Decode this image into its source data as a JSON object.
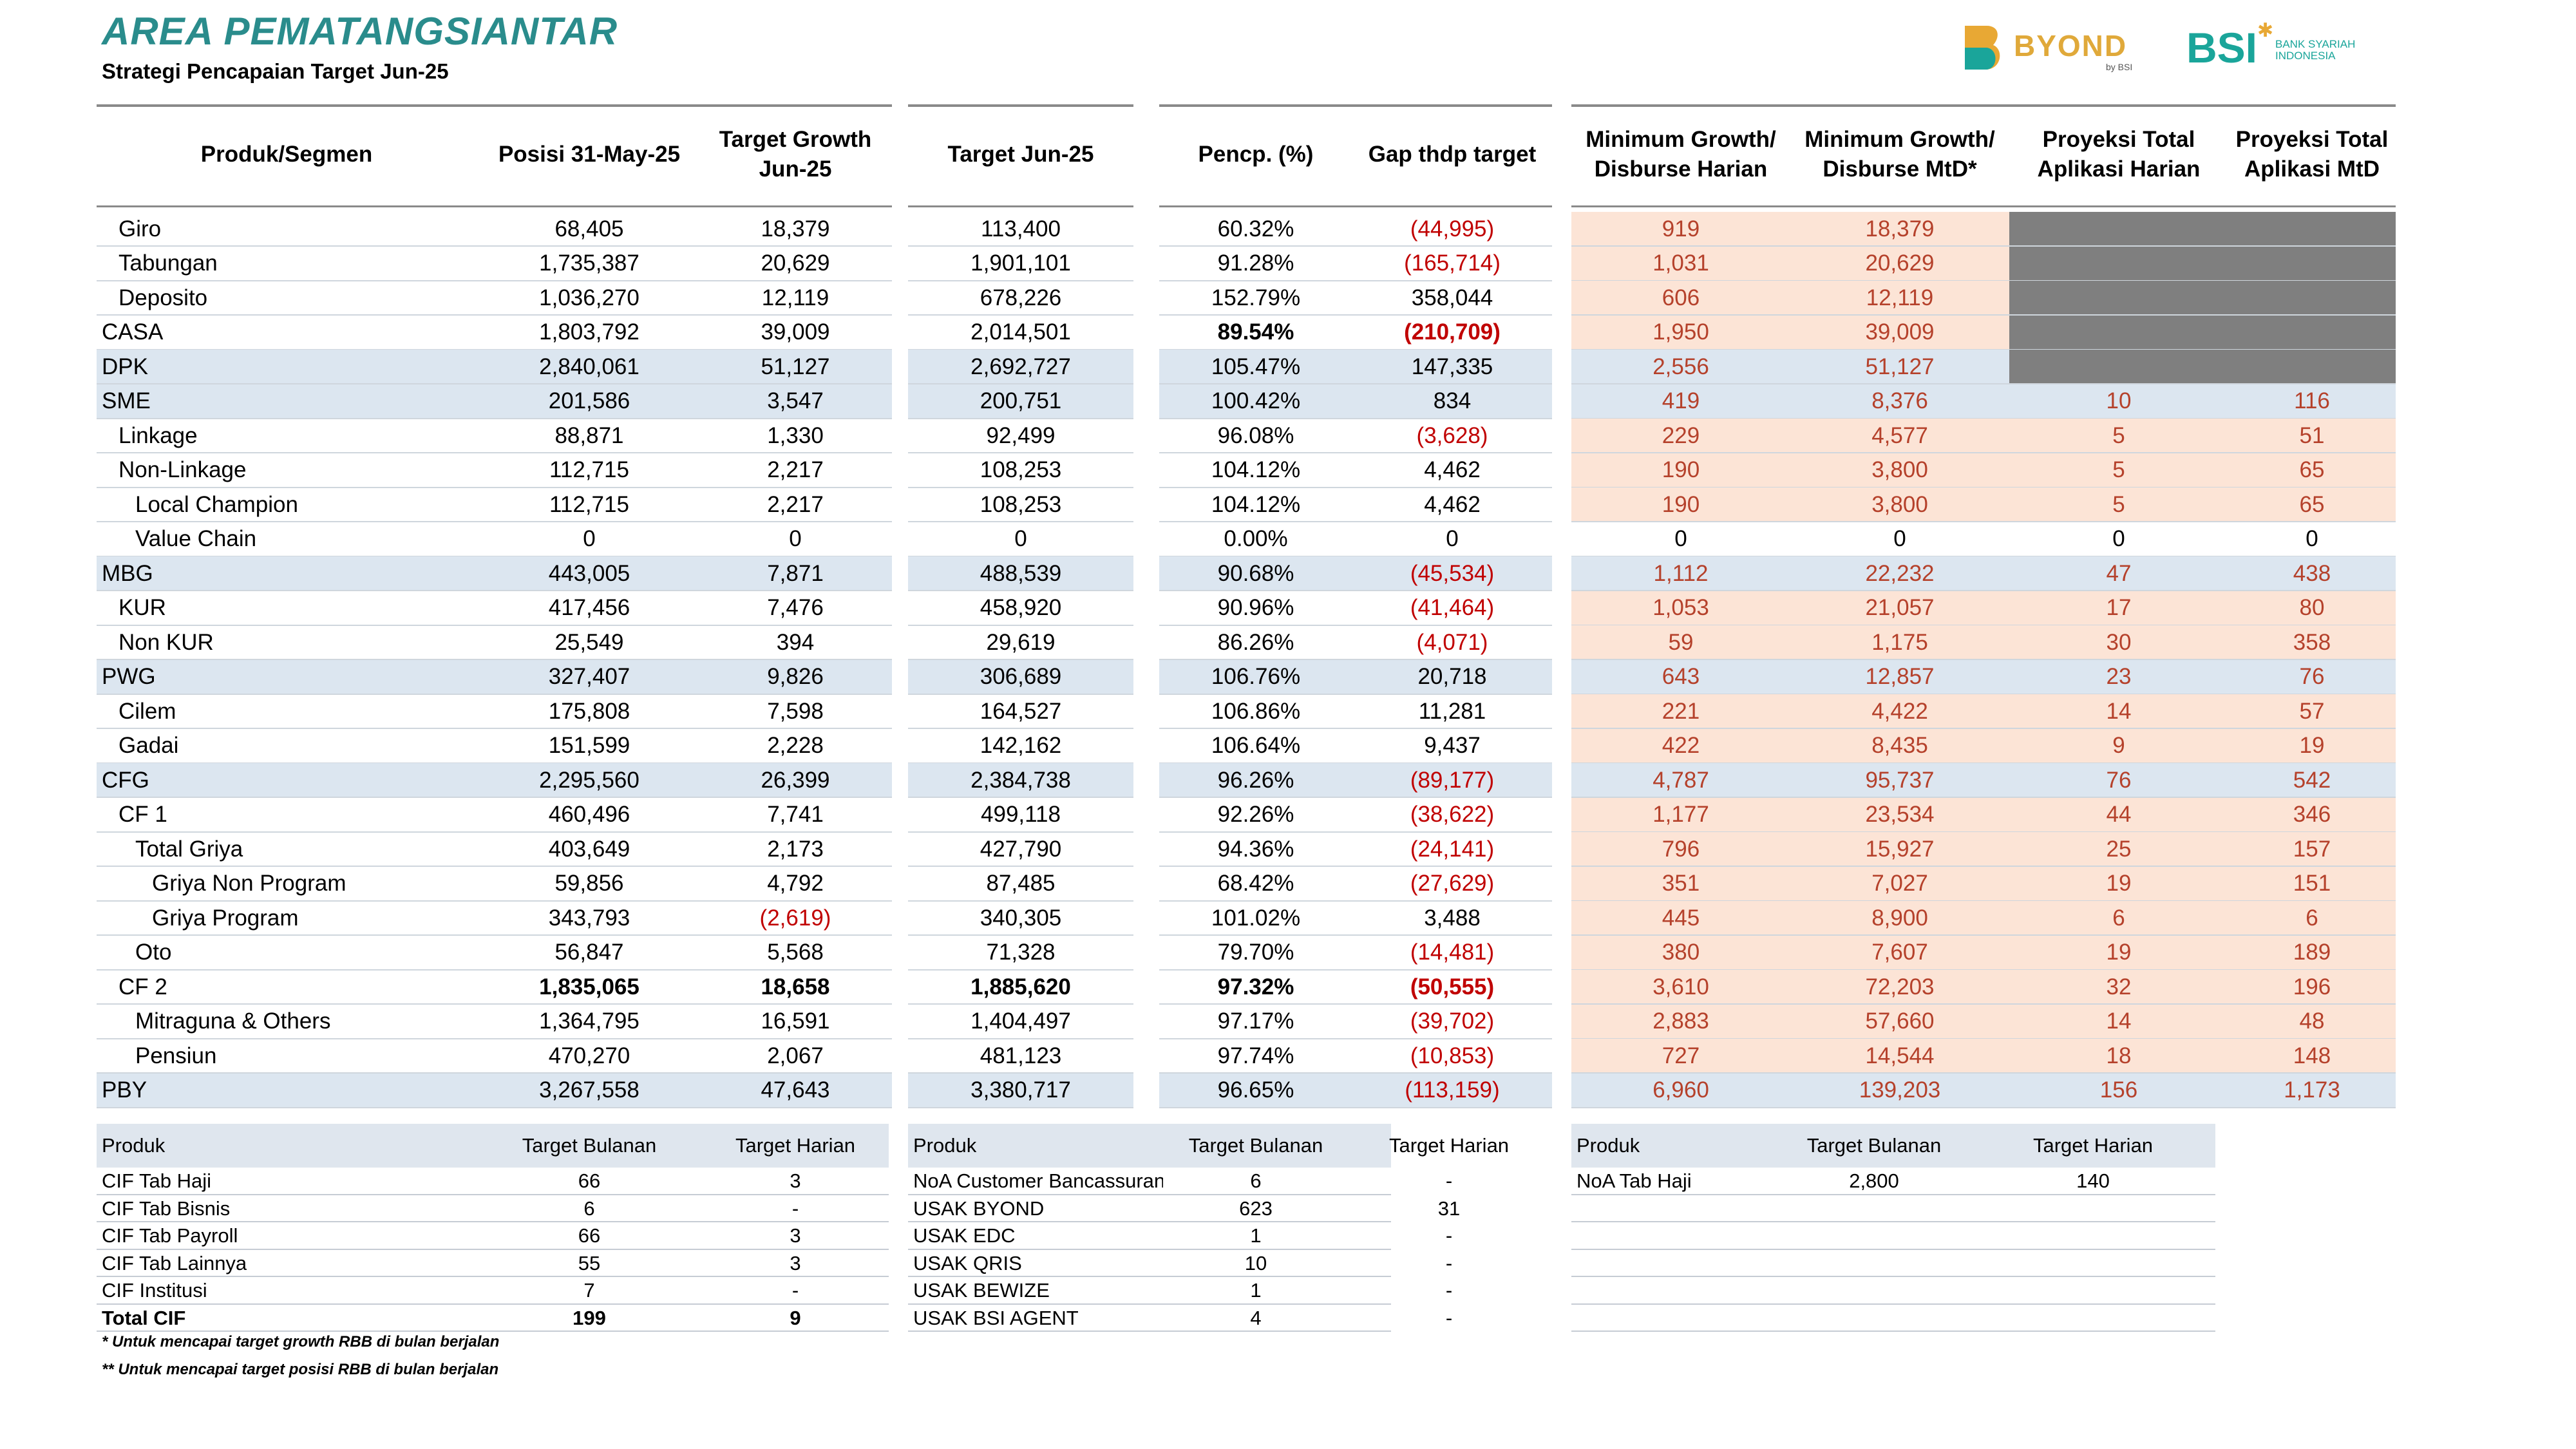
{
  "header": {
    "title": "AREA PEMATANGSIANTAR",
    "subtitle": "Strategi Pencapaian Target Jun-25"
  },
  "logos": {
    "byond": "BYOND",
    "byond_sub": "by BSI",
    "bsi": "BSI",
    "bsi_tag_1": "BANK SYARIAH",
    "bsi_tag_2": "INDONESIA"
  },
  "colors": {
    "title": "#2a8c8c",
    "negative": "#c00000",
    "projection_text": "#b5412b",
    "segment_row_bg": "#dce6f0",
    "projection_bg": "#fce4d6",
    "gray_block": "#7f7f7f"
  },
  "main_table": {
    "columns": [
      "Produk/Segmen",
      "Posisi 31-May-25",
      "Target Growth Jun-25",
      "Target Jun-25",
      "Pencp. (%)",
      "Gap thdp target",
      "Minimum Growth/ Disburse Harian",
      "Minimum Growth/ Disburse MtD*",
      "Proyeksi Total Aplikasi Harian",
      "Proyeksi Total Aplikasi MtD"
    ],
    "rows": [
      {
        "name": "Giro",
        "indent": 1,
        "seg": false,
        "bold": false,
        "posisi": "68,405",
        "growth": "18,379",
        "target": "113,400",
        "pencp": "60.32%",
        "gap": "(44,995)",
        "min_harian": "919",
        "min_mtd": "18,379",
        "proj_harian": "",
        "proj_mtd": "",
        "gray": true
      },
      {
        "name": "Tabungan",
        "indent": 1,
        "seg": false,
        "bold": false,
        "posisi": "1,735,387",
        "growth": "20,629",
        "target": "1,901,101",
        "pencp": "91.28%",
        "gap": "(165,714)",
        "min_harian": "1,031",
        "min_mtd": "20,629",
        "proj_harian": "",
        "proj_mtd": "",
        "gray": true
      },
      {
        "name": "Deposito",
        "indent": 1,
        "seg": false,
        "bold": false,
        "posisi": "1,036,270",
        "growth": "12,119",
        "target": "678,226",
        "pencp": "152.79%",
        "gap": "358,044",
        "min_harian": "606",
        "min_mtd": "12,119",
        "proj_harian": "",
        "proj_mtd": "",
        "gray": true
      },
      {
        "name": "CASA",
        "indent": 0,
        "seg": false,
        "bold": false,
        "boldcols": true,
        "posisi": "1,803,792",
        "growth": "39,009",
        "target": "2,014,501",
        "pencp": "89.54%",
        "gap": "(210,709)",
        "min_harian": "1,950",
        "min_mtd": "39,009",
        "proj_harian": "",
        "proj_mtd": "",
        "gray": true
      },
      {
        "name": "DPK",
        "indent": 0,
        "seg": true,
        "bold": false,
        "posisi": "2,840,061",
        "growth": "51,127",
        "target": "2,692,727",
        "pencp": "105.47%",
        "gap": "147,335",
        "min_harian": "2,556",
        "min_mtd": "51,127",
        "proj_harian": "",
        "proj_mtd": "",
        "gray": true
      },
      {
        "name": "SME",
        "indent": 0,
        "seg": true,
        "bold": false,
        "posisi": "201,586",
        "growth": "3,547",
        "target": "200,751",
        "pencp": "100.42%",
        "gap": "834",
        "min_harian": "419",
        "min_mtd": "8,376",
        "proj_harian": "10",
        "proj_mtd": "116",
        "gray": false
      },
      {
        "name": "Linkage",
        "indent": 1,
        "seg": false,
        "bold": false,
        "posisi": "88,871",
        "growth": "1,330",
        "target": "92,499",
        "pencp": "96.08%",
        "gap": "(3,628)",
        "min_harian": "229",
        "min_mtd": "4,577",
        "proj_harian": "5",
        "proj_mtd": "51",
        "gray": false
      },
      {
        "name": "Non-Linkage",
        "indent": 1,
        "seg": false,
        "bold": false,
        "posisi": "112,715",
        "growth": "2,217",
        "target": "108,253",
        "pencp": "104.12%",
        "gap": "4,462",
        "min_harian": "190",
        "min_mtd": "3,800",
        "proj_harian": "5",
        "proj_mtd": "65",
        "gray": false
      },
      {
        "name": "Local Champion",
        "indent": 2,
        "seg": false,
        "bold": false,
        "posisi": "112,715",
        "growth": "2,217",
        "target": "108,253",
        "pencp": "104.12%",
        "gap": "4,462",
        "min_harian": "190",
        "min_mtd": "3,800",
        "proj_harian": "5",
        "proj_mtd": "65",
        "gray": false
      },
      {
        "name": "Value Chain",
        "indent": 2,
        "seg": false,
        "bold": false,
        "posisi": "0",
        "growth": "0",
        "target": "0",
        "pencp": "0.00%",
        "gap": "0",
        "min_harian": "0",
        "min_mtd": "0",
        "proj_harian": "0",
        "proj_mtd": "0",
        "gray": false,
        "plain": true
      },
      {
        "name": "MBG",
        "indent": 0,
        "seg": true,
        "bold": false,
        "posisi": "443,005",
        "growth": "7,871",
        "target": "488,539",
        "pencp": "90.68%",
        "gap": "(45,534)",
        "min_harian": "1,112",
        "min_mtd": "22,232",
        "proj_harian": "47",
        "proj_mtd": "438",
        "gray": false
      },
      {
        "name": "KUR",
        "indent": 1,
        "seg": false,
        "bold": false,
        "posisi": "417,456",
        "growth": "7,476",
        "target": "458,920",
        "pencp": "90.96%",
        "gap": "(41,464)",
        "min_harian": "1,053",
        "min_mtd": "21,057",
        "proj_harian": "17",
        "proj_mtd": "80",
        "gray": false
      },
      {
        "name": "Non KUR",
        "indent": 1,
        "seg": false,
        "bold": false,
        "posisi": "25,549",
        "growth": "394",
        "target": "29,619",
        "pencp": "86.26%",
        "gap": "(4,071)",
        "min_harian": "59",
        "min_mtd": "1,175",
        "proj_harian": "30",
        "proj_mtd": "358",
        "gray": false
      },
      {
        "name": "PWG",
        "indent": 0,
        "seg": true,
        "bold": false,
        "posisi": "327,407",
        "growth": "9,826",
        "target": "306,689",
        "pencp": "106.76%",
        "gap": "20,718",
        "min_harian": "643",
        "min_mtd": "12,857",
        "proj_harian": "23",
        "proj_mtd": "76",
        "gray": false
      },
      {
        "name": "Cilem",
        "indent": 1,
        "seg": false,
        "bold": false,
        "posisi": "175,808",
        "growth": "7,598",
        "target": "164,527",
        "pencp": "106.86%",
        "gap": "11,281",
        "min_harian": "221",
        "min_mtd": "4,422",
        "proj_harian": "14",
        "proj_mtd": "57",
        "gray": false
      },
      {
        "name": "Gadai",
        "indent": 1,
        "seg": false,
        "bold": false,
        "posisi": "151,599",
        "growth": "2,228",
        "target": "142,162",
        "pencp": "106.64%",
        "gap": "9,437",
        "min_harian": "422",
        "min_mtd": "8,435",
        "proj_harian": "9",
        "proj_mtd": "19",
        "gray": false
      },
      {
        "name": "CFG",
        "indent": 0,
        "seg": true,
        "bold": false,
        "posisi": "2,295,560",
        "growth": "26,399",
        "target": "2,384,738",
        "pencp": "96.26%",
        "gap": "(89,177)",
        "min_harian": "4,787",
        "min_mtd": "95,737",
        "proj_harian": "76",
        "proj_mtd": "542",
        "gray": false
      },
      {
        "name": "CF 1",
        "indent": 1,
        "seg": false,
        "bold": false,
        "posisi": "460,496",
        "growth": "7,741",
        "target": "499,118",
        "pencp": "92.26%",
        "gap": "(38,622)",
        "min_harian": "1,177",
        "min_mtd": "23,534",
        "proj_harian": "44",
        "proj_mtd": "346",
        "gray": false
      },
      {
        "name": "Total Griya",
        "indent": 2,
        "seg": false,
        "bold": false,
        "posisi": "403,649",
        "growth": "2,173",
        "target": "427,790",
        "pencp": "94.36%",
        "gap": "(24,141)",
        "min_harian": "796",
        "min_mtd": "15,927",
        "proj_harian": "25",
        "proj_mtd": "157",
        "gray": false
      },
      {
        "name": "Griya Non Program",
        "indent": 3,
        "seg": false,
        "bold": false,
        "posisi": "59,856",
        "growth": "4,792",
        "target": "87,485",
        "pencp": "68.42%",
        "gap": "(27,629)",
        "min_harian": "351",
        "min_mtd": "7,027",
        "proj_harian": "19",
        "proj_mtd": "151",
        "gray": false
      },
      {
        "name": "Griya Program",
        "indent": 3,
        "seg": false,
        "bold": false,
        "posisi": "343,793",
        "growth": "(2,619)",
        "target": "340,305",
        "pencp": "101.02%",
        "gap": "3,488",
        "min_harian": "445",
        "min_mtd": "8,900",
        "proj_harian": "6",
        "proj_mtd": "6",
        "gray": false
      },
      {
        "name": "Oto",
        "indent": 2,
        "seg": false,
        "bold": false,
        "posisi": "56,847",
        "growth": "5,568",
        "target": "71,328",
        "pencp": "79.70%",
        "gap": "(14,481)",
        "min_harian": "380",
        "min_mtd": "7,607",
        "proj_harian": "19",
        "proj_mtd": "189",
        "gray": false
      },
      {
        "name": "CF 2",
        "indent": 1,
        "seg": false,
        "bold": false,
        "boldcols": true,
        "posisi": "1,835,065",
        "growth": "18,658",
        "target": "1,885,620",
        "pencp": "97.32%",
        "gap": "(50,555)",
        "min_harian": "3,610",
        "min_mtd": "72,203",
        "proj_harian": "32",
        "proj_mtd": "196",
        "gray": false
      },
      {
        "name": "Mitraguna & Others",
        "indent": 2,
        "seg": false,
        "bold": false,
        "posisi": "1,364,795",
        "growth": "16,591",
        "target": "1,404,497",
        "pencp": "97.17%",
        "gap": "(39,702)",
        "min_harian": "2,883",
        "min_mtd": "57,660",
        "proj_harian": "14",
        "proj_mtd": "48",
        "gray": false
      },
      {
        "name": "Pensiun",
        "indent": 2,
        "seg": false,
        "bold": false,
        "posisi": "470,270",
        "growth": "2,067",
        "target": "481,123",
        "pencp": "97.74%",
        "gap": "(10,853)",
        "min_harian": "727",
        "min_mtd": "14,544",
        "proj_harian": "18",
        "proj_mtd": "148",
        "gray": false
      },
      {
        "name": "PBY",
        "indent": 0,
        "seg": true,
        "bold": false,
        "posisi": "3,267,558",
        "growth": "47,643",
        "target": "3,380,717",
        "pencp": "96.65%",
        "gap": "(113,159)",
        "min_harian": "6,960",
        "min_mtd": "139,203",
        "proj_harian": "156",
        "proj_mtd": "1,173",
        "gray": false
      }
    ]
  },
  "cif_table": {
    "headers": [
      "Produk",
      "Target Bulanan",
      "Target Harian"
    ],
    "rows": [
      {
        "produk": "CIF Tab Haji",
        "bulanan": "66",
        "harian": "3"
      },
      {
        "produk": "CIF Tab Bisnis",
        "bulanan": "6",
        "harian": "-"
      },
      {
        "produk": "CIF Tab Payroll",
        "bulanan": "66",
        "harian": "3"
      },
      {
        "produk": "CIF Tab Lainnya",
        "bulanan": "55",
        "harian": "3"
      },
      {
        "produk": "CIF Institusi",
        "bulanan": "7",
        "harian": "-"
      },
      {
        "produk": "Total CIF",
        "bulanan": "199",
        "harian": "9",
        "bold": true
      }
    ]
  },
  "noa_table": {
    "headers": [
      "Produk",
      "Target Bulanan",
      "Target Harian"
    ],
    "rows": [
      {
        "produk": "NoA Customer Bancassurance",
        "bulanan": "6",
        "harian": "-"
      },
      {
        "produk": "USAK BYOND",
        "bulanan": "623",
        "harian": "31"
      },
      {
        "produk": "USAK EDC",
        "bulanan": "1",
        "harian": "-"
      },
      {
        "produk": "USAK QRIS",
        "bulanan": "10",
        "harian": "-"
      },
      {
        "produk": "USAK BEWIZE",
        "bulanan": "1",
        "harian": "-"
      },
      {
        "produk": "USAK BSI AGENT",
        "bulanan": "4",
        "harian": "-"
      }
    ]
  },
  "haji_table": {
    "headers": [
      "Produk",
      "Target Bulanan",
      "Target Harian"
    ],
    "rows": [
      {
        "produk": "NoA Tab Haji",
        "bulanan": "2,800",
        "harian": "140"
      }
    ]
  },
  "notes": [
    "* Untuk mencapai target growth RBB di bulan berjalan",
    "** Untuk mencapai target posisi RBB di bulan berjalan"
  ]
}
